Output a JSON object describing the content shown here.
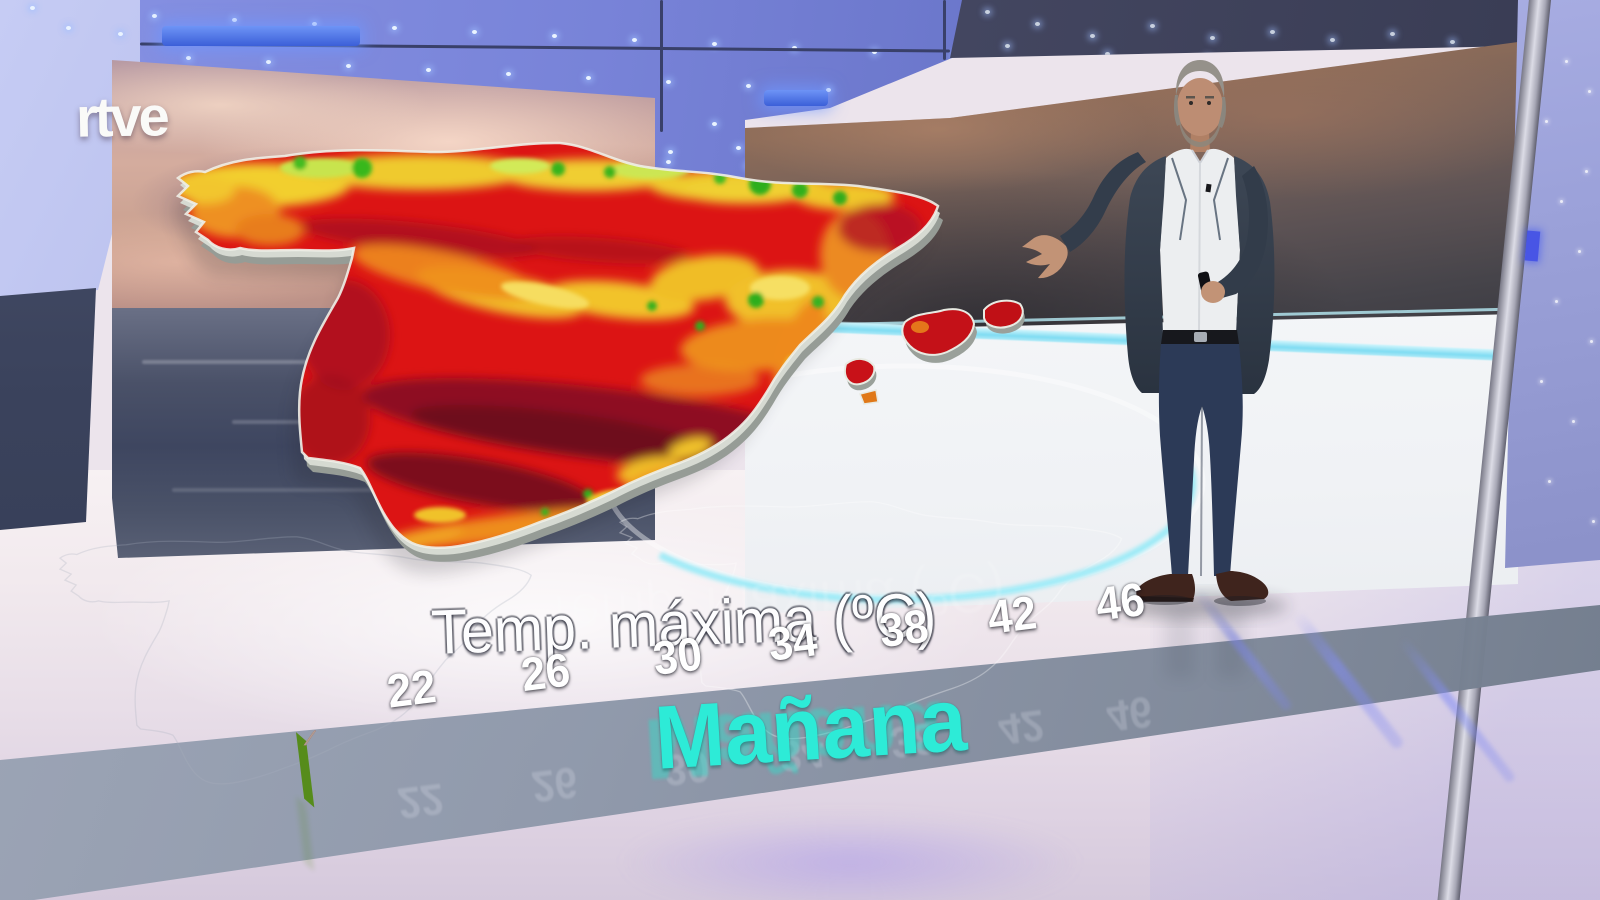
{
  "channel": {
    "logo": "rtve"
  },
  "weather_graphic": {
    "title": "Temp. máxima (ºC)",
    "day_label": "Mañana",
    "day_label_color": "#2debd7",
    "legend": {
      "tick_labels": [
        "22",
        "26",
        "30",
        "34",
        "38",
        "42",
        "46"
      ],
      "block_colors": [
        "#84d829",
        "#eaee6a",
        "#f8da33",
        "#f3a827",
        "#ec7b1b",
        "#e11313",
        "#cf1320",
        "#ae1226",
        "#8c1120",
        "#5f0d16",
        "#2f0a0e",
        "#5b4644",
        "#8e6e60"
      ]
    },
    "accent_colors": {
      "panel_stripe": "#7fdcf2",
      "floor_arc": "#8eeaf8"
    }
  }
}
